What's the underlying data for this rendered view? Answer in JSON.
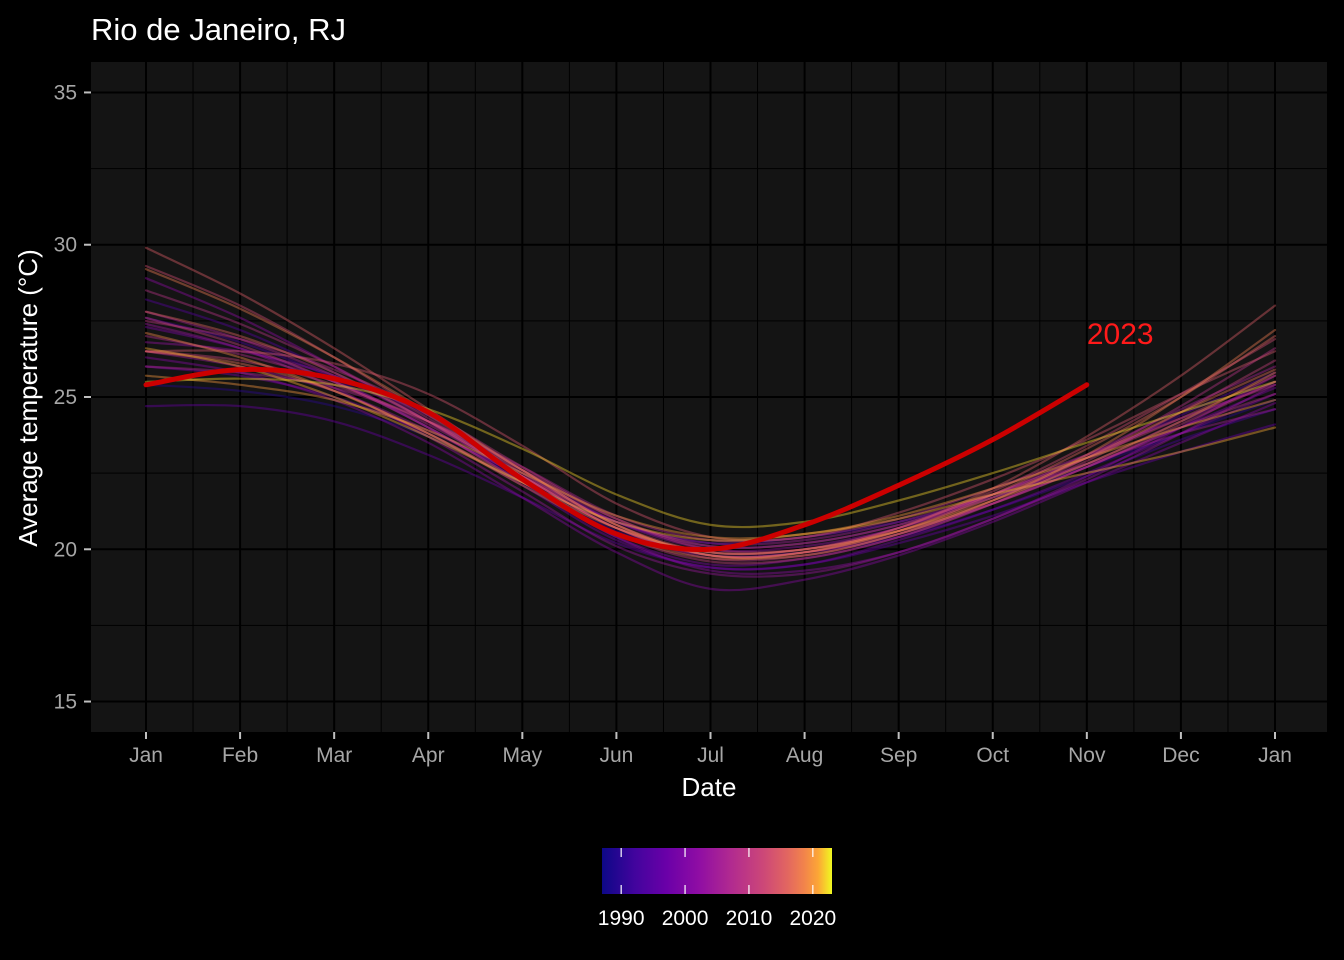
{
  "chart_data": {
    "type": "line",
    "title": "Rio de Janeiro, RJ",
    "xlabel": "Date",
    "ylabel": "Average temperature (°C)",
    "ylim": [
      14,
      36
    ],
    "yticks": [
      15,
      20,
      25,
      30,
      35
    ],
    "x_tick_labels": [
      "Jan",
      "Feb",
      "Mar",
      "Apr",
      "May",
      "Jun",
      "Jul",
      "Aug",
      "Sep",
      "Oct",
      "Nov",
      "Dec",
      "Jan"
    ],
    "grid": true,
    "background": "#141414",
    "highlight": {
      "year": 2023,
      "label": "2023",
      "color": "#cc0000",
      "label_color": "#ff1a1a",
      "values": [
        25.4,
        25.9,
        25.6,
        24.5,
        22.3,
        20.5,
        20.0,
        20.8,
        22.1,
        23.6,
        25.4
      ]
    },
    "series": [
      {
        "year": 1990,
        "values": [
          25.4,
          25.2,
          24.7,
          23.7,
          22.2,
          20.9,
          20.2,
          20.4,
          20.9,
          21.7,
          22.7,
          23.8,
          24.9
        ]
      },
      {
        "year": 1993,
        "values": [
          27.6,
          26.8,
          25.6,
          24.0,
          22.3,
          20.6,
          19.8,
          19.9,
          20.4,
          21.3,
          22.4,
          23.6,
          24.6
        ]
      },
      {
        "year": 1995,
        "values": [
          28.2,
          27.2,
          25.8,
          24.2,
          22.5,
          20.9,
          20.1,
          20.2,
          20.8,
          21.8,
          23.0,
          24.4,
          25.8
        ]
      },
      {
        "year": 1997,
        "values": [
          24.7,
          24.7,
          24.2,
          23.1,
          21.7,
          20.2,
          19.4,
          19.5,
          20.2,
          21.1,
          22.2,
          23.2,
          24.1
        ]
      },
      {
        "year": 1999,
        "values": [
          26.0,
          25.7,
          25.0,
          23.8,
          22.1,
          20.3,
          19.4,
          19.5,
          20.3,
          21.3,
          22.5,
          23.8,
          25.1
        ]
      },
      {
        "year": 2000,
        "values": [
          27.3,
          26.6,
          25.5,
          24.0,
          22.2,
          20.4,
          19.5,
          19.7,
          20.4,
          21.5,
          22.7,
          24.0,
          25.3
        ]
      },
      {
        "year": 2001,
        "values": [
          26.3,
          25.8,
          24.9,
          23.5,
          21.7,
          19.9,
          18.7,
          19.0,
          19.8,
          20.9,
          22.2,
          23.5,
          24.8
        ]
      },
      {
        "year": 2002,
        "values": [
          28.9,
          27.6,
          26.0,
          24.2,
          22.3,
          20.4,
          19.3,
          19.3,
          19.9,
          21.0,
          22.4,
          24.0,
          25.7
        ]
      },
      {
        "year": 2003,
        "values": [
          26.8,
          26.5,
          25.7,
          24.4,
          22.6,
          20.9,
          20.0,
          20.1,
          20.7,
          21.7,
          22.8,
          24.2,
          25.5
        ]
      },
      {
        "year": 2004,
        "values": [
          27.4,
          26.6,
          25.3,
          23.7,
          21.9,
          20.1,
          19.2,
          19.2,
          19.9,
          21.0,
          22.3,
          23.8,
          25.4
        ]
      },
      {
        "year": 2005,
        "values": [
          26.5,
          26.0,
          25.2,
          23.9,
          22.4,
          20.9,
          20.2,
          20.3,
          20.9,
          21.8,
          22.8,
          23.8,
          24.6
        ]
      },
      {
        "year": 2006,
        "values": [
          27.8,
          26.9,
          25.7,
          24.2,
          22.4,
          20.7,
          19.9,
          20.0,
          20.7,
          21.8,
          23.1,
          24.6,
          26.0
        ]
      },
      {
        "year": 2007,
        "values": [
          26.0,
          25.8,
          25.3,
          24.2,
          22.7,
          21.1,
          20.3,
          20.4,
          21.0,
          22.0,
          23.1,
          24.3,
          25.4
        ]
      },
      {
        "year": 2008,
        "values": [
          27.0,
          26.4,
          25.5,
          24.1,
          22.4,
          20.7,
          19.8,
          19.9,
          20.5,
          21.5,
          22.7,
          24.0,
          25.1
        ]
      },
      {
        "year": 2009,
        "values": [
          28.5,
          27.4,
          26.0,
          24.3,
          22.4,
          20.7,
          19.7,
          19.8,
          20.5,
          21.6,
          23.0,
          24.7,
          26.6
        ]
      },
      {
        "year": 2010,
        "values": [
          27.5,
          26.9,
          25.9,
          24.5,
          22.7,
          21.0,
          20.0,
          20.0,
          20.6,
          21.5,
          22.7,
          24.1,
          25.5
        ]
      },
      {
        "year": 2011,
        "values": [
          27.6,
          26.7,
          25.5,
          24.0,
          22.2,
          20.5,
          19.6,
          19.7,
          20.4,
          21.5,
          22.9,
          24.5,
          26.2
        ]
      },
      {
        "year": 2012,
        "values": [
          26.5,
          26.2,
          25.4,
          24.2,
          22.6,
          21.0,
          20.1,
          20.2,
          20.8,
          21.8,
          23.0,
          24.3,
          25.7
        ]
      },
      {
        "year": 2013,
        "values": [
          29.3,
          28.0,
          26.3,
          24.4,
          22.5,
          20.8,
          19.9,
          20.0,
          20.7,
          21.9,
          23.4,
          25.1,
          26.9
        ]
      },
      {
        "year": 2014,
        "values": [
          26.5,
          26.5,
          26.1,
          25.1,
          23.4,
          21.5,
          20.4,
          20.4,
          21.2,
          22.3,
          23.6,
          25.1,
          26.5
        ]
      },
      {
        "year": 2015,
        "values": [
          29.9,
          28.4,
          26.6,
          24.6,
          22.6,
          20.8,
          19.8,
          19.9,
          20.7,
          22.0,
          23.7,
          25.7,
          28.0
        ]
      },
      {
        "year": 2016,
        "values": [
          27.8,
          27.0,
          25.8,
          24.2,
          22.4,
          20.7,
          19.8,
          19.9,
          20.6,
          21.8,
          23.3,
          25.0,
          27.0
        ]
      },
      {
        "year": 2017,
        "values": [
          26.5,
          26.1,
          25.2,
          23.8,
          22.1,
          20.5,
          19.7,
          19.9,
          20.6,
          21.7,
          23.0,
          24.5,
          25.9
        ]
      },
      {
        "year": 2018,
        "values": [
          29.2,
          27.9,
          26.3,
          24.5,
          22.6,
          20.8,
          19.8,
          19.8,
          20.5,
          21.6,
          23.1,
          25.0,
          27.2
        ]
      },
      {
        "year": 2019,
        "values": [
          27.1,
          26.3,
          25.2,
          23.8,
          22.2,
          20.7,
          19.9,
          20.0,
          20.6,
          21.6,
          22.8,
          24.2,
          25.8
        ]
      },
      {
        "year": 2020,
        "values": [
          25.7,
          25.4,
          24.9,
          23.9,
          22.5,
          21.1,
          20.4,
          20.5,
          21.1,
          22.0,
          23.0,
          24.0,
          24.9
        ]
      },
      {
        "year": 2021,
        "values": [
          26.6,
          26.0,
          25.0,
          23.7,
          22.2,
          20.9,
          20.3,
          20.5,
          21.0,
          21.8,
          22.5,
          23.2,
          24.0
        ]
      },
      {
        "year": 2022,
        "values": [
          25.5,
          25.6,
          25.4,
          24.6,
          23.3,
          21.8,
          20.8,
          20.9,
          21.6,
          22.5,
          23.5,
          24.5,
          25.5
        ]
      }
    ],
    "legend": {
      "type": "colorbar",
      "placement": "bottom",
      "palette": "plasma",
      "range": [
        1987,
        2023
      ],
      "ticks": [
        1990,
        2000,
        2010,
        2020
      ],
      "tick_labels": [
        "1990",
        "2000",
        "2010",
        "2020"
      ]
    }
  }
}
